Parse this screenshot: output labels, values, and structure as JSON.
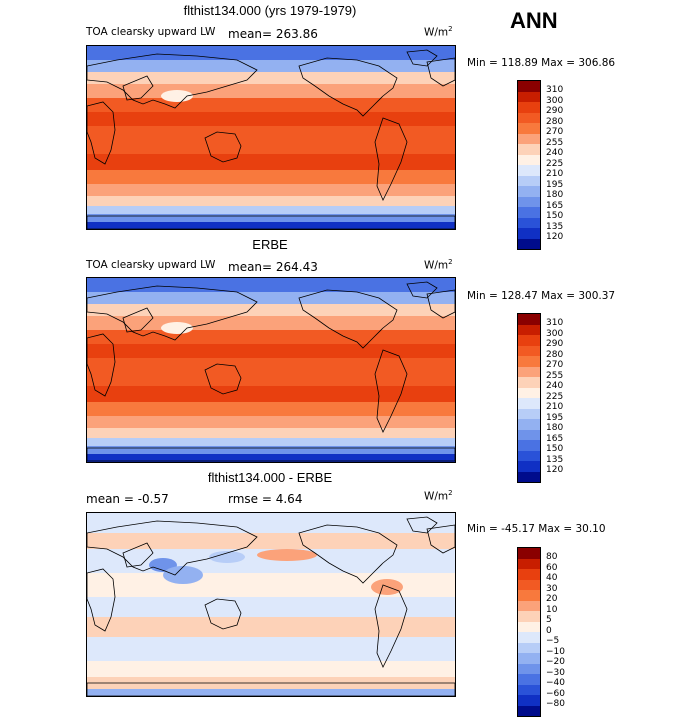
{
  "header": {
    "season": "ANN"
  },
  "panels": [
    {
      "title": "flthist134.000 (yrs 1979-1979)",
      "left_label": "TOA clearsky upward LW",
      "mean_text": "mean= 263.86",
      "units": "W/m",
      "units_sup": "2",
      "minmax": "Min = 118.89 Max = 306.86",
      "colorbar": {
        "labels": [
          "310",
          "300",
          "290",
          "280",
          "270",
          "255",
          "240",
          "225",
          "210",
          "195",
          "180",
          "165",
          "150",
          "135",
          "120"
        ],
        "colors": [
          "#8a0000",
          "#c81e00",
          "#e8400f",
          "#f25a23",
          "#f8793d",
          "#fba27a",
          "#fdd2b8",
          "#fff1e5",
          "#dde8fb",
          "#b7cdf7",
          "#93b1f1",
          "#6f93ea",
          "#4a72e3",
          "#2a52d8",
          "#1030c4",
          "#000c8c"
        ]
      },
      "map_style": "abs"
    },
    {
      "title": "ERBE",
      "left_label": "TOA clearsky upward LW",
      "mean_text": "mean= 264.43",
      "units": "W/m",
      "units_sup": "2",
      "minmax": "Min = 128.47 Max = 300.37",
      "colorbar": {
        "labels": [
          "310",
          "300",
          "290",
          "280",
          "270",
          "255",
          "240",
          "225",
          "210",
          "195",
          "180",
          "165",
          "150",
          "135",
          "120"
        ],
        "colors": [
          "#8a0000",
          "#c81e00",
          "#e8400f",
          "#f25a23",
          "#f8793d",
          "#fba27a",
          "#fdd2b8",
          "#fff1e5",
          "#dde8fb",
          "#b7cdf7",
          "#93b1f1",
          "#6f93ea",
          "#4a72e3",
          "#2a52d8",
          "#1030c4",
          "#000c8c"
        ]
      },
      "map_style": "abs"
    },
    {
      "title": "flthist134.000 - ERBE",
      "left_label": "mean =   -0.57",
      "mean_text": "rmse =   4.64",
      "units": "W/m",
      "units_sup": "2",
      "minmax": "Min = -45.17 Max =  30.10",
      "colorbar": {
        "labels": [
          "80",
          "60",
          "40",
          "30",
          "20",
          "10",
          "5",
          "0",
          "−5",
          "−10",
          "−20",
          "−30",
          "−40",
          "−60",
          "−80"
        ],
        "colors": [
          "#8a0000",
          "#c81e00",
          "#e8400f",
          "#f25a23",
          "#f8793d",
          "#fba27a",
          "#fdd2b8",
          "#fff1e5",
          "#dde8fb",
          "#b7cdf7",
          "#93b1f1",
          "#6f93ea",
          "#4a72e3",
          "#2a52d8",
          "#1030c4",
          "#000c8c"
        ]
      },
      "map_style": "diff"
    }
  ]
}
